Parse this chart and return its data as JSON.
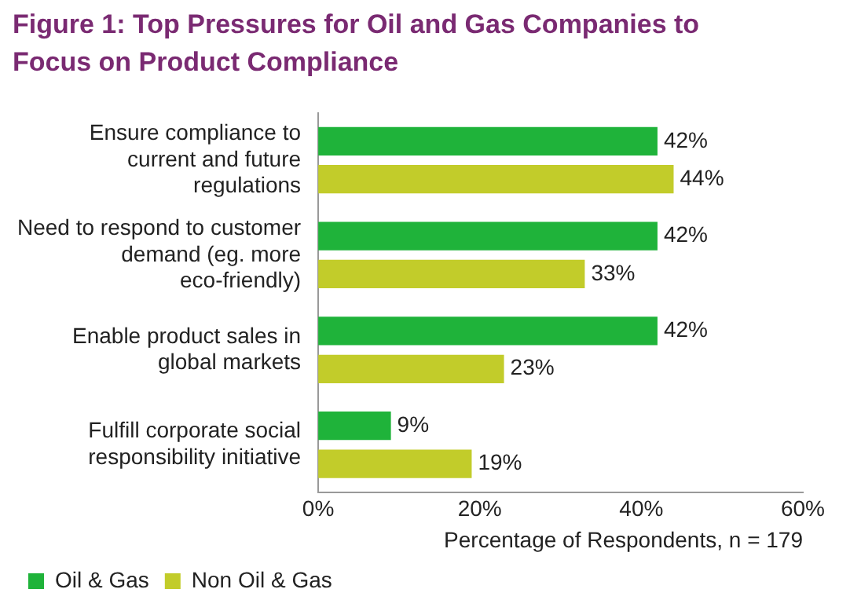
{
  "chart_data": {
    "type": "bar",
    "orientation": "horizontal",
    "title": "Figure 1: Top Pressures for Oil and Gas Companies to Focus on Product Compliance",
    "xlabel": "Percentage of Respondents, n = 179",
    "categories": [
      "Ensure compliance to current and future regulations",
      "Need to respond to customer demand (eg. more eco-friendly)",
      "Enable product sales in global markets",
      "Fulfill corporate social responsibility initiative"
    ],
    "series": [
      {
        "name": "Oil & Gas",
        "color": "#1fb33a",
        "values": [
          42,
          42,
          42,
          9
        ],
        "value_labels": [
          "42%",
          "42%",
          "42%",
          "9%"
        ]
      },
      {
        "name": "Non Oil & Gas",
        "color": "#c2cc2a",
        "values": [
          44,
          33,
          23,
          19
        ],
        "value_labels": [
          "44%",
          "33%",
          "23%",
          "19%"
        ]
      }
    ],
    "xlim": [
      0,
      60
    ],
    "xticks": [
      {
        "value": 0,
        "label": "0%"
      },
      {
        "value": 20,
        "label": "20%"
      },
      {
        "value": 40,
        "label": "40%"
      },
      {
        "value": 60,
        "label": "60%"
      }
    ],
    "grid": false,
    "legend": "bottom left"
  }
}
